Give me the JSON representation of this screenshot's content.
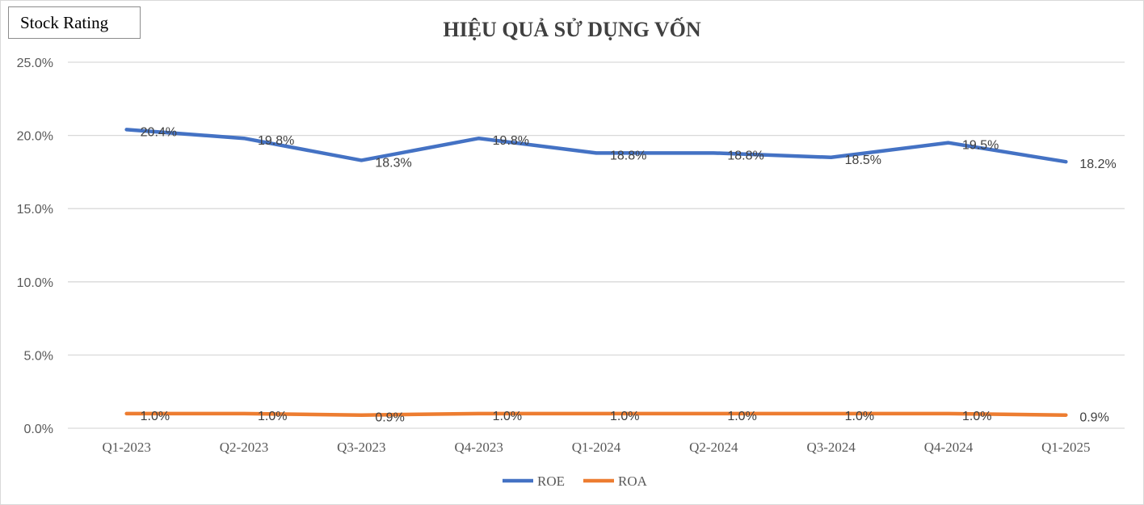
{
  "badge": {
    "label": "Stock Rating"
  },
  "chart_data": {
    "type": "line",
    "title": "HIỆU QUẢ SỬ DỤNG VỐN",
    "xlabel": "",
    "ylabel": "",
    "categories": [
      "Q1-2023",
      "Q2-2023",
      "Q3-2023",
      "Q4-2023",
      "Q1-2024",
      "Q2-2024",
      "Q3-2024",
      "Q4-2024",
      "Q1-2025"
    ],
    "ylim": [
      0,
      25
    ],
    "yticks": [
      "0.0%",
      "5.0%",
      "10.0%",
      "15.0%",
      "20.0%",
      "25.0%"
    ],
    "grid": true,
    "legend_position": "bottom",
    "series": [
      {
        "name": "ROE",
        "color": "#4472c4",
        "values": [
          20.4,
          19.8,
          18.3,
          19.8,
          18.8,
          18.8,
          18.5,
          19.5,
          18.2
        ],
        "labels": [
          "20.4%",
          "19.8%",
          "18.3%",
          "19.8%",
          "18.8%",
          "18.8%",
          "18.5%",
          "19.5%",
          "18.2%"
        ]
      },
      {
        "name": "ROA",
        "color": "#ed7d31",
        "values": [
          1.0,
          1.0,
          0.9,
          1.0,
          1.0,
          1.0,
          1.0,
          1.0,
          0.9
        ],
        "labels": [
          "1.0%",
          "1.0%",
          "0.9%",
          "1.0%",
          "1.0%",
          "1.0%",
          "1.0%",
          "1.0%",
          "0.9%"
        ]
      }
    ]
  }
}
